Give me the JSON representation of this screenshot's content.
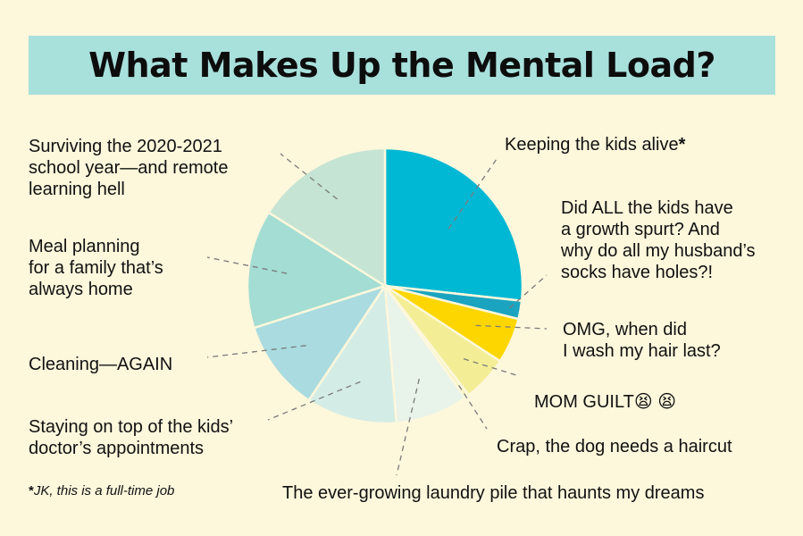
{
  "chart_data": {
    "type": "pie",
    "title": "What Makes Up the Mental Load?",
    "slices": [
      {
        "label": "Keeping the kids alive*",
        "value": 25,
        "color": "#00b8d4"
      },
      {
        "label": "Did ALL the kids have a growth spurt? And why do all my husband’s socks have holes?!",
        "value": 2,
        "color": "#1aa4c0"
      },
      {
        "label": "OMG, when did I wash my hair last?",
        "value": 5,
        "color": "#fdd600"
      },
      {
        "label": "MOM GUILT 😫 😫",
        "value": 5,
        "color": "#f3ee95"
      },
      {
        "label": "Crap, the dog needs a haircut",
        "value": 0.5,
        "color": "#f6f3c0"
      },
      {
        "label": "The ever-growing laundry pile that haunts my dreams",
        "value": 8,
        "color": "#e8f3ea"
      },
      {
        "label": "Staying on top of the kids’ doctor’s appointments",
        "value": 10,
        "color": "#d4ece6"
      },
      {
        "label": "Cleaning—AGAIN",
        "value": 10,
        "color": "#a9dbe0"
      },
      {
        "label": "Meal planning for a family that’s always home",
        "value": 13,
        "color": "#a3ddd3"
      },
      {
        "label": "Surviving the 2020-2021 school year—and remote learning hell",
        "value": 15,
        "color": "#c5e4d4"
      }
    ],
    "footnote_star": "*",
    "footnote": "JK, this is a full-time job"
  },
  "labels": {
    "surviving": "Surviving the 2020-2021\nschool year—and remote\nlearning hell",
    "meal": "Meal planning\nfor a family that’s\nalways home",
    "cleaning": "Cleaning—AGAIN",
    "doctor": "Staying on top of the kids’\ndoctor’s appointments",
    "kids_alive": "Keeping the kids alive",
    "kids_alive_star": "*",
    "growth": "Did ALL the kids have\na growth spurt? And\nwhy do all my husband’s\nsocks have holes?!",
    "hair": "OMG, when did\nI wash my hair last?",
    "guilt": "MOM GUILT😫 😫",
    "dog": "Crap, the dog needs a haircut",
    "laundry": "The ever-growing laundry pile that haunts my dreams"
  },
  "colors": {
    "background": "#fdf7dc",
    "title_band": "#a8e0dc"
  }
}
